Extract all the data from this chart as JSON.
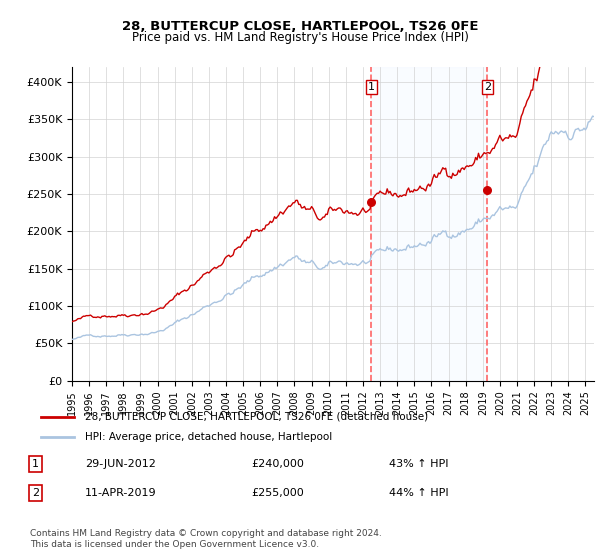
{
  "title_line1": "28, BUTTERCUP CLOSE, HARTLEPOOL, TS26 0FE",
  "title_line2": "Price paid vs. HM Land Registry's House Price Index (HPI)",
  "legend_line1": "28, BUTTERCUP CLOSE, HARTLEPOOL, TS26 0FE (detached house)",
  "legend_line2": "HPI: Average price, detached house, Hartlepool",
  "annotation1": {
    "num": "1",
    "date": "29-JUN-2012",
    "price": "£240,000",
    "pct": "43% ↑ HPI"
  },
  "annotation2": {
    "num": "2",
    "date": "11-APR-2019",
    "price": "£255,000",
    "pct": "44% ↑ HPI"
  },
  "sale1_date_year": 2012.49,
  "sale1_price": 240000,
  "sale2_date_year": 2019.27,
  "sale2_price": 255000,
  "hpi_line_color": "#aac4e0",
  "price_line_color": "#cc0000",
  "sale_dot_color": "#cc0000",
  "vline_color": "#ff6666",
  "highlight_color": "#ddeeff",
  "ylabel_start": 0,
  "ylabel_end": 400000,
  "ylabel_step": 50000,
  "footer": "Contains HM Land Registry data © Crown copyright and database right 2024.\nThis data is licensed under the Open Government Licence v3.0.",
  "background_color": "#ffffff"
}
